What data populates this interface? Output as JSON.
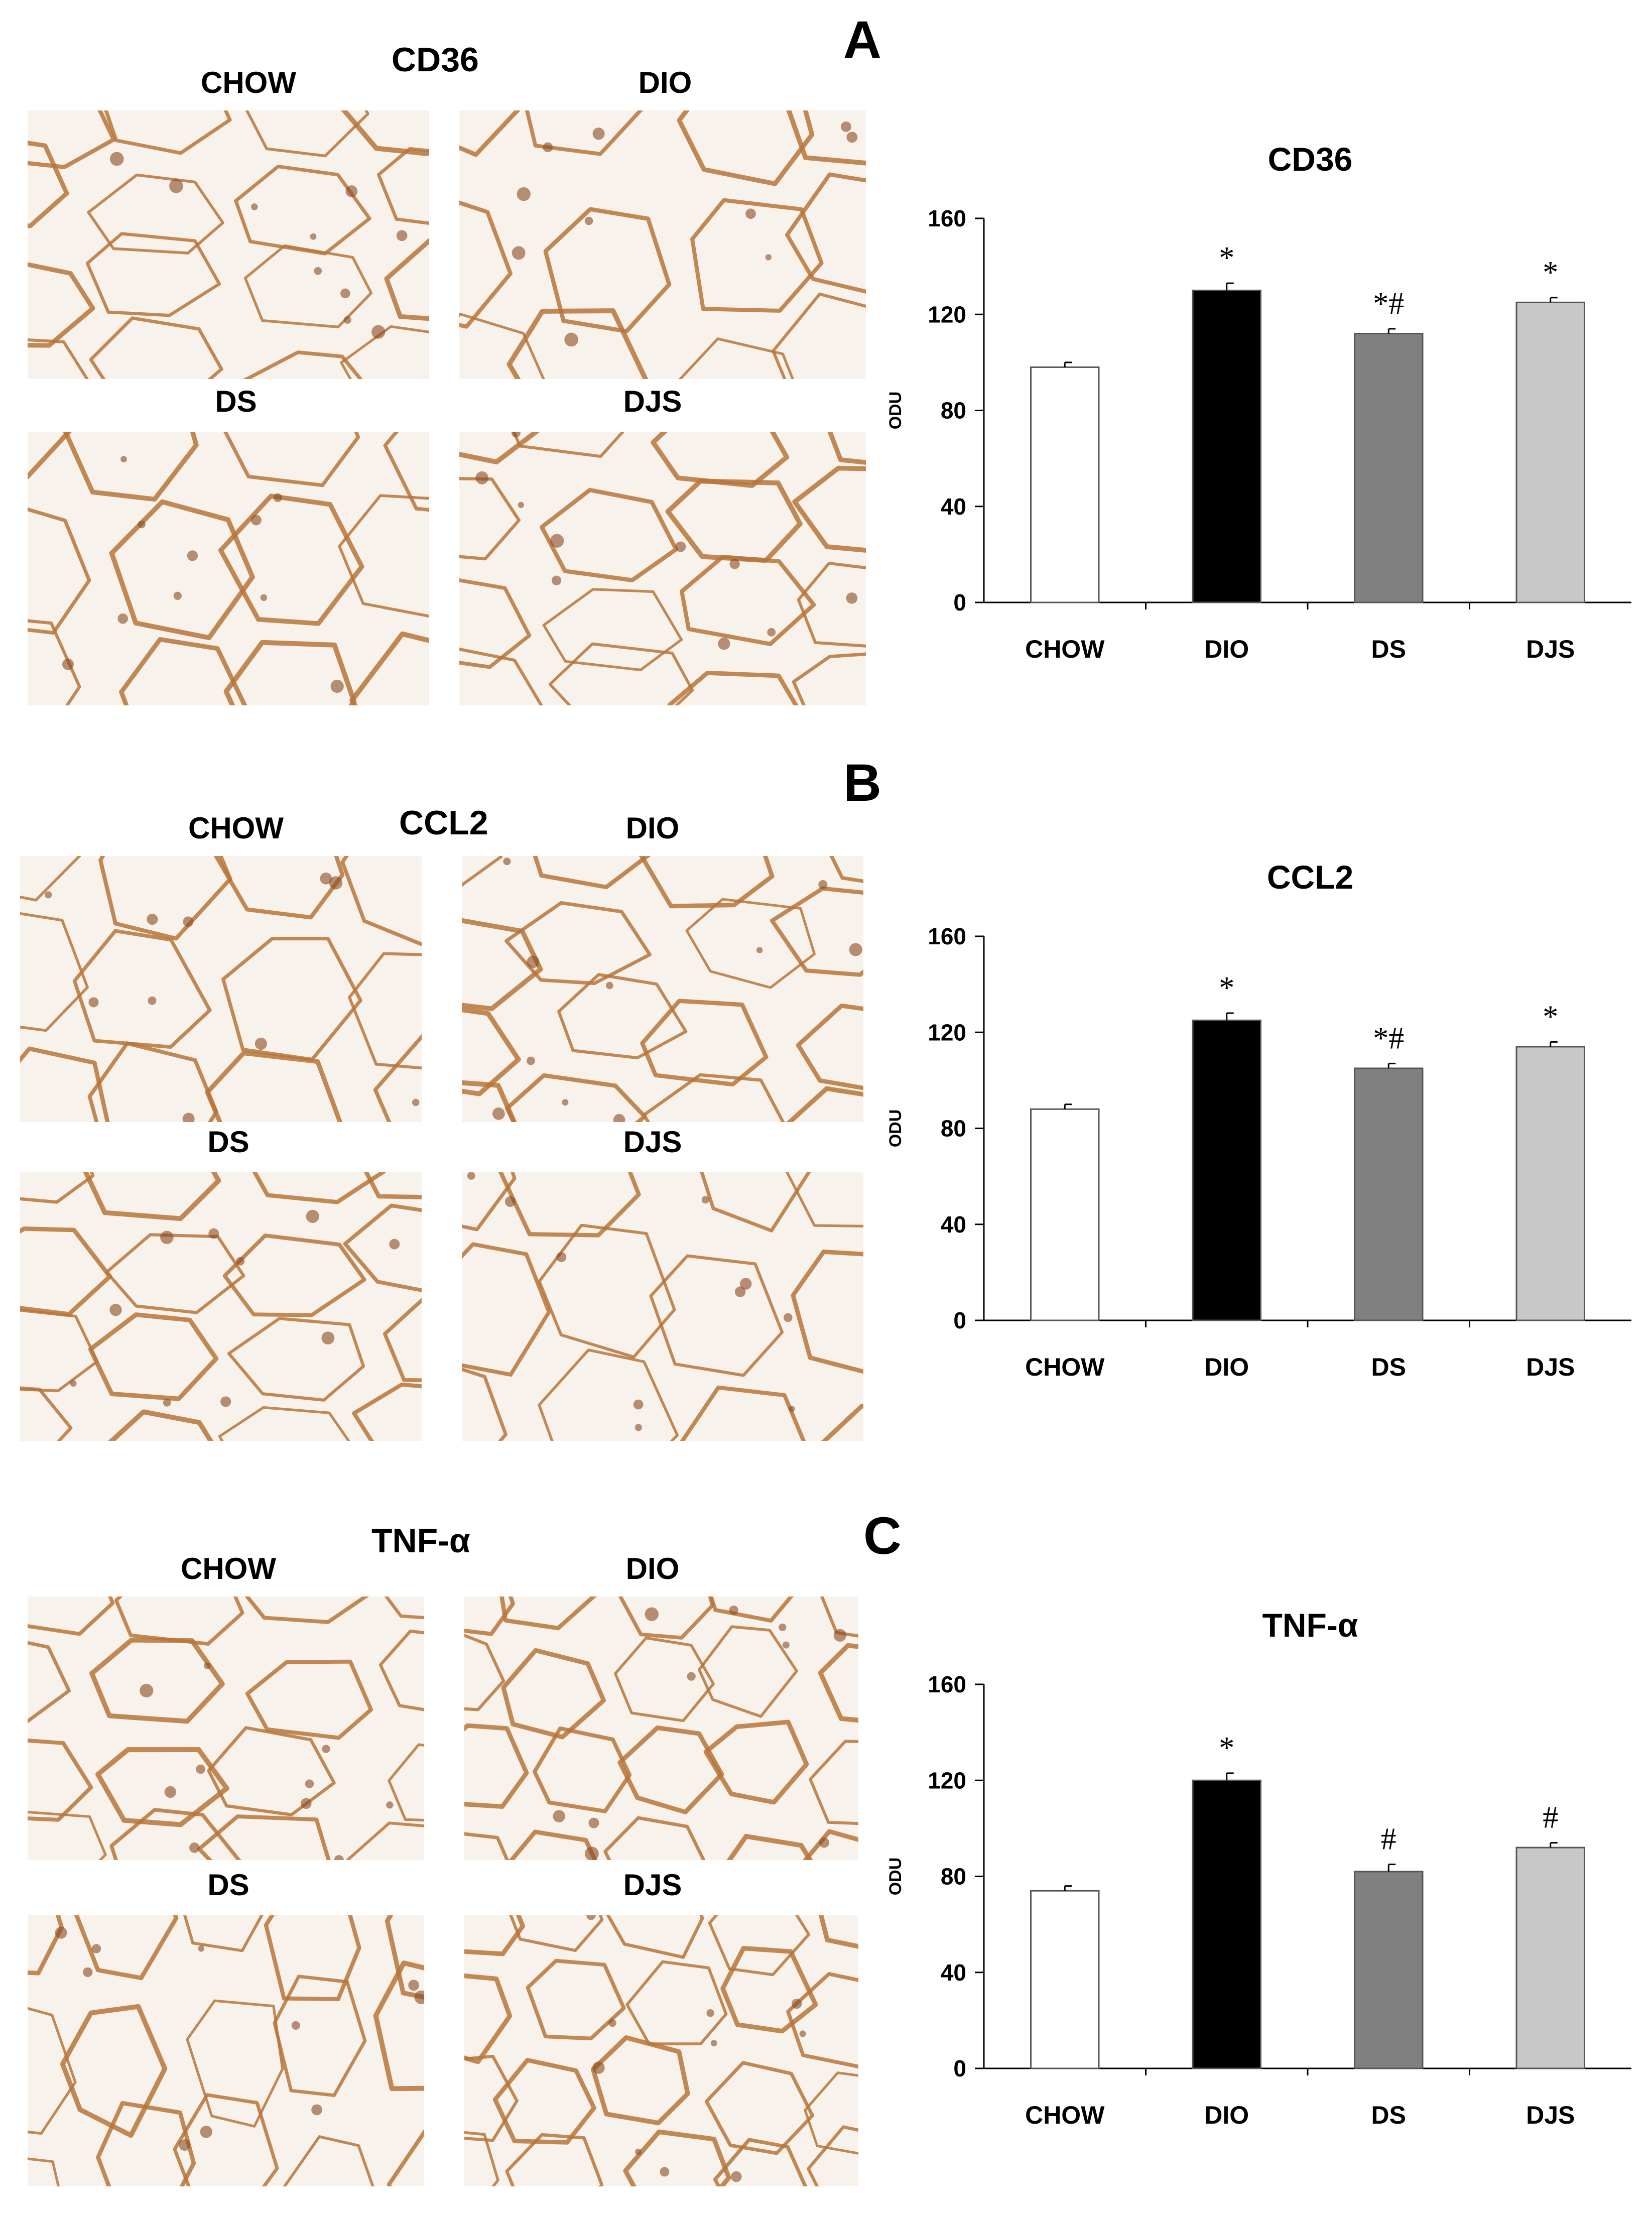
{
  "colors": {
    "chow": "#ffffff",
    "dio": "#000000",
    "ds": "#808080",
    "djs": "#c8c8c8",
    "stain": "#b8743a",
    "background": "#f7f3ec"
  },
  "panels": [
    {
      "letter": "A",
      "stain": "CD36",
      "groups": [
        "CHOW",
        "DIO",
        "DS",
        "DJS"
      ]
    },
    {
      "letter": "B",
      "stain": "CCL2",
      "groups": [
        "CHOW",
        "DIO",
        "DS",
        "DJS"
      ]
    },
    {
      "letter": "C",
      "stain": "TNF-α",
      "groups": [
        "CHOW",
        "DIO",
        "DS",
        "DJS"
      ]
    }
  ],
  "chart_data": [
    {
      "type": "bar",
      "title": "CD36",
      "ylabel": "ODU",
      "xlabel": "",
      "ylim": [
        0,
        160
      ],
      "yticks": [
        0,
        40,
        80,
        120,
        160
      ],
      "categories": [
        "CHOW",
        "DIO",
        "DS",
        "DJS"
      ],
      "values": [
        98,
        130,
        112,
        125
      ],
      "errors": [
        2,
        3,
        2,
        2
      ],
      "annotations": [
        "",
        "*",
        "*#",
        "*"
      ]
    },
    {
      "type": "bar",
      "title": "CCL2",
      "ylabel": "ODU",
      "xlabel": "",
      "ylim": [
        0,
        160
      ],
      "yticks": [
        0,
        40,
        80,
        120,
        160
      ],
      "categories": [
        "CHOW",
        "DIO",
        "DS",
        "DJS"
      ],
      "values": [
        88,
        125,
        105,
        114
      ],
      "errors": [
        2,
        3,
        2,
        2
      ],
      "annotations": [
        "",
        "*",
        "*#",
        "*"
      ]
    },
    {
      "type": "bar",
      "title": "TNF-α",
      "ylabel": "ODU",
      "xlabel": "",
      "ylim": [
        0,
        160
      ],
      "yticks": [
        0,
        40,
        80,
        120,
        160
      ],
      "categories": [
        "CHOW",
        "DIO",
        "DS",
        "DJS"
      ],
      "values": [
        74,
        120,
        82,
        92
      ],
      "errors": [
        2,
        3,
        3,
        2
      ],
      "annotations": [
        "",
        "*",
        "#",
        "#"
      ]
    }
  ]
}
